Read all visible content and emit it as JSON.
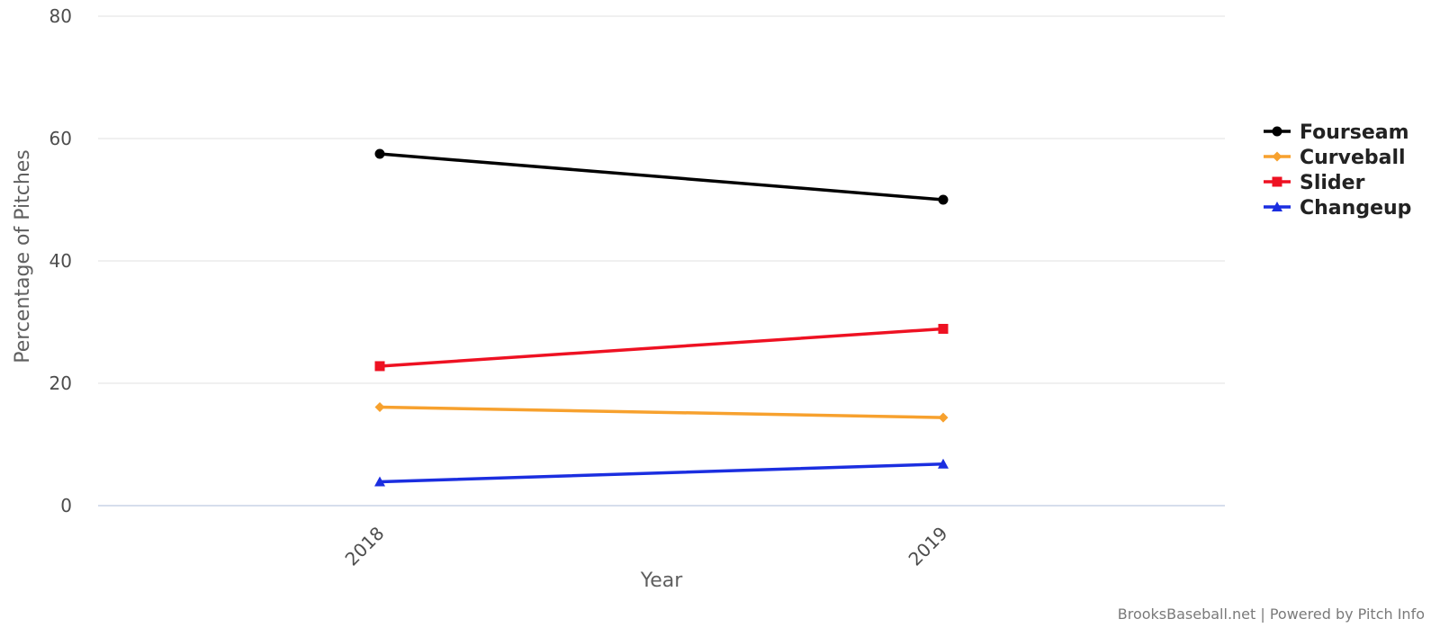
{
  "chart_data": {
    "type": "line",
    "title": "",
    "xlabel": "Year",
    "ylabel": "Percentage of Pitches",
    "categories": [
      "2018",
      "2019"
    ],
    "ylim": [
      0,
      80
    ],
    "yticks": [
      0,
      20,
      40,
      60,
      80
    ],
    "grid": true,
    "legend_position": "right",
    "series": [
      {
        "name": "Fourseam",
        "color": "#000000",
        "marker": "circle",
        "values": [
          57.5,
          50.0
        ]
      },
      {
        "name": "Curveball",
        "color": "#f7a12e",
        "marker": "diamond",
        "values": [
          16.1,
          14.4
        ]
      },
      {
        "name": "Slider",
        "color": "#ee1122",
        "marker": "square",
        "values": [
          22.8,
          28.9
        ]
      },
      {
        "name": "Changeup",
        "color": "#1b2ee0",
        "marker": "triangle",
        "values": [
          3.9,
          6.8
        ]
      }
    ]
  },
  "credit": "BrooksBaseball.net | Powered by Pitch Info"
}
